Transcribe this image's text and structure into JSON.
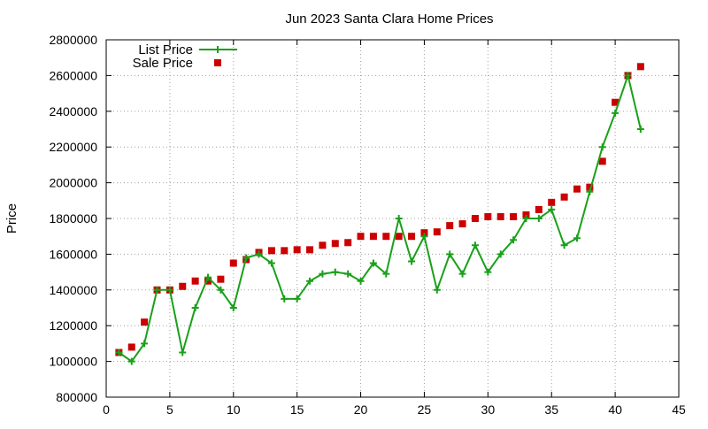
{
  "chart_data": {
    "type": "line",
    "title": "Jun 2023 Santa Clara Home Prices",
    "xlabel": "",
    "ylabel": "Price",
    "xlim": [
      0,
      45
    ],
    "ylim": [
      800000,
      2800000
    ],
    "xticks": [
      0,
      5,
      10,
      15,
      20,
      25,
      30,
      35,
      40,
      45
    ],
    "yticks": [
      800000,
      1000000,
      1200000,
      1400000,
      1600000,
      1800000,
      2000000,
      2200000,
      2400000,
      2600000,
      2800000
    ],
    "grid": true,
    "grid_style": "dotted",
    "legend_position": "top-left",
    "series": [
      {
        "name": "List Price",
        "style": "line-plus",
        "color": "#1aa01a",
        "x": [
          1,
          2,
          3,
          4,
          5,
          6,
          7,
          8,
          9,
          10,
          11,
          12,
          13,
          14,
          15,
          16,
          17,
          18,
          19,
          20,
          21,
          22,
          23,
          24,
          25,
          26,
          27,
          28,
          29,
          30,
          31,
          32,
          33,
          34,
          35,
          36,
          37,
          38,
          39,
          40,
          41,
          42
        ],
        "values": [
          1050000,
          1000000,
          1100000,
          1400000,
          1400000,
          1050000,
          1300000,
          1470000,
          1400000,
          1300000,
          1580000,
          1600000,
          1550000,
          1350000,
          1350000,
          1450000,
          1490000,
          1500000,
          1490000,
          1450000,
          1550000,
          1490000,
          1800000,
          1560000,
          1700000,
          1400000,
          1600000,
          1490000,
          1650000,
          1500000,
          1600000,
          1680000,
          1800000,
          1800000,
          1850000,
          1650000,
          1690000,
          1950000,
          2200000,
          2390000,
          2600000,
          2300000
        ]
      },
      {
        "name": "Sale Price",
        "style": "points-square",
        "color": "#cc0000",
        "x": [
          1,
          2,
          3,
          4,
          5,
          6,
          7,
          8,
          9,
          10,
          11,
          12,
          13,
          14,
          15,
          16,
          17,
          18,
          19,
          20,
          21,
          22,
          23,
          24,
          25,
          26,
          27,
          28,
          29,
          30,
          31,
          32,
          33,
          34,
          35,
          36,
          37,
          38,
          39,
          40,
          41,
          42
        ],
        "values": [
          1050000,
          1080000,
          1220000,
          1400000,
          1400000,
          1420000,
          1450000,
          1450000,
          1460000,
          1550000,
          1570000,
          1610000,
          1620000,
          1620000,
          1625000,
          1625000,
          1650000,
          1660000,
          1665000,
          1700000,
          1700000,
          1700000,
          1700000,
          1700000,
          1720000,
          1725000,
          1760000,
          1770000,
          1800000,
          1810000,
          1810000,
          1810000,
          1820000,
          1850000,
          1890000,
          1920000,
          1965000,
          1975000,
          2120000,
          2450000,
          2600000,
          2650000
        ]
      }
    ]
  }
}
